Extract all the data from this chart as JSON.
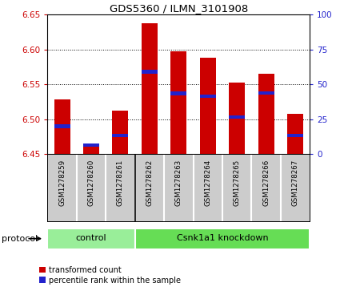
{
  "title": "GDS5360 / ILMN_3101908",
  "samples": [
    "GSM1278259",
    "GSM1278260",
    "GSM1278261",
    "GSM1278262",
    "GSM1278263",
    "GSM1278264",
    "GSM1278265",
    "GSM1278266",
    "GSM1278267"
  ],
  "red_values": [
    6.528,
    6.464,
    6.513,
    6.638,
    6.597,
    6.588,
    6.553,
    6.565,
    6.508
  ],
  "blue_values": [
    6.49,
    6.463,
    6.477,
    6.568,
    6.537,
    6.533,
    6.503,
    6.538,
    6.477
  ],
  "ylim": [
    6.45,
    6.65
  ],
  "yticks": [
    6.45,
    6.5,
    6.55,
    6.6,
    6.65
  ],
  "right_yticks": [
    0,
    25,
    50,
    75,
    100
  ],
  "right_ylim": [
    0,
    100
  ],
  "bar_width": 0.55,
  "bar_color": "#cc0000",
  "blue_color": "#2222cc",
  "control_color": "#99ee99",
  "knockdown_color": "#66dd55",
  "sample_bg_color": "#cccccc",
  "plot_bg": "#ffffff",
  "left_label_color": "#cc0000",
  "right_label_color": "#2222cc",
  "n_control": 3,
  "n_knockdown": 6,
  "protocol_label": "protocol",
  "control_label": "control",
  "knockdown_label": "Csnk1a1 knockdown",
  "legend_items": [
    {
      "color": "#cc0000",
      "label": "transformed count"
    },
    {
      "color": "#2222cc",
      "label": "percentile rank within the sample"
    }
  ]
}
